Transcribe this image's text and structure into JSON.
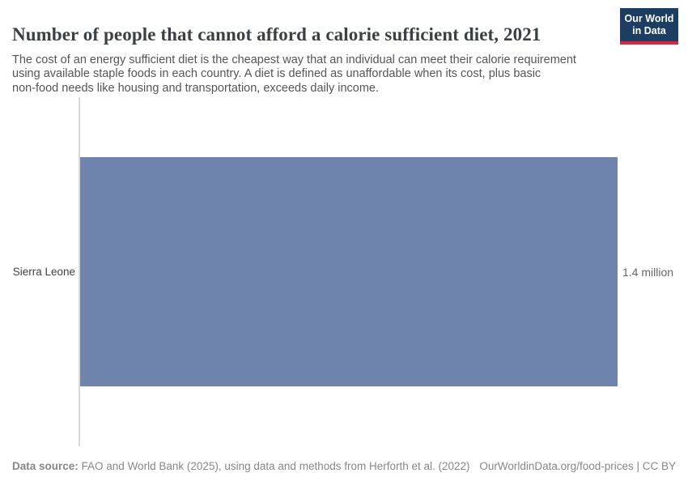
{
  "header": {
    "title": "Number of people that cannot afford a calorie sufficient diet, 2021",
    "subtitle": "The cost of an energy sufficient diet is the cheapest way that an individual can meet their calorie requirement\nusing available staple foods in each country. A diet is defined as unaffordable when its cost, plus basic\nnon-food needs like housing and transportation, exceeds daily income.",
    "logo": {
      "line1": "Our World",
      "line2": "in Data",
      "background_color": "#1d3d63",
      "stripe_color": "#e0233c"
    }
  },
  "chart_data": {
    "type": "bar",
    "orientation": "horizontal",
    "title": "Number of people that cannot afford a calorie sufficient diet, 2021",
    "year": "2021",
    "categories": [
      "Sierra Leone"
    ],
    "values": [
      1400000
    ],
    "value_labels": [
      "1.4 million"
    ],
    "xlim": [
      0,
      1400000
    ],
    "bar_color": "#6e84ad",
    "axis_line_color": "#d9d9d9",
    "grid": false,
    "legend": "none"
  },
  "footer": {
    "source_label": "Data source:",
    "source_text": " FAO and World Bank (2025), using data and methods from Herforth et al. (2022)",
    "attribution": "OurWorldinData.org/food-prices | CC BY"
  }
}
